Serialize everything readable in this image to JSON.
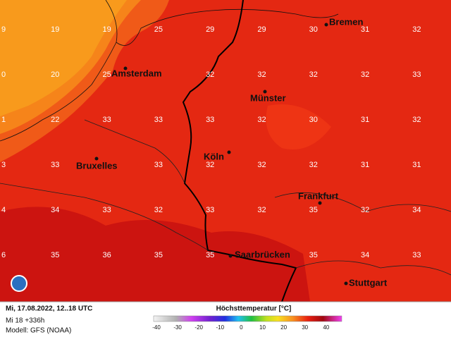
{
  "map": {
    "grid_values": [
      [
        9,
        19,
        19,
        25,
        29,
        29,
        30,
        31,
        32
      ],
      [
        0,
        20,
        25,
        null,
        32,
        32,
        32,
        32,
        33
      ],
      [
        1,
        22,
        33,
        33,
        33,
        32,
        30,
        31,
        32
      ],
      [
        3,
        33,
        null,
        33,
        32,
        32,
        32,
        31,
        31
      ],
      [
        4,
        34,
        33,
        32,
        33,
        32,
        35,
        32,
        34
      ],
      [
        6,
        35,
        36,
        35,
        35,
        null,
        35,
        34,
        33
      ]
    ],
    "cities": [
      "Bremen",
      "Amsterdam",
      "Münster",
      "Köln",
      "Bruxelles",
      "Frankfurt",
      "Saarbrücken",
      "Stuttgart"
    ]
  },
  "footer": {
    "date": "Mi, 17.08.2022, 12..18 UTC",
    "run": "Mi 18 +336h",
    "model": "Modell: GFS (NOAA)",
    "legend_title": "Höchsttemperatur [°C]",
    "legend_ticks": [
      -40,
      -30,
      -20,
      -10,
      0,
      10,
      20,
      30,
      40
    ]
  }
}
